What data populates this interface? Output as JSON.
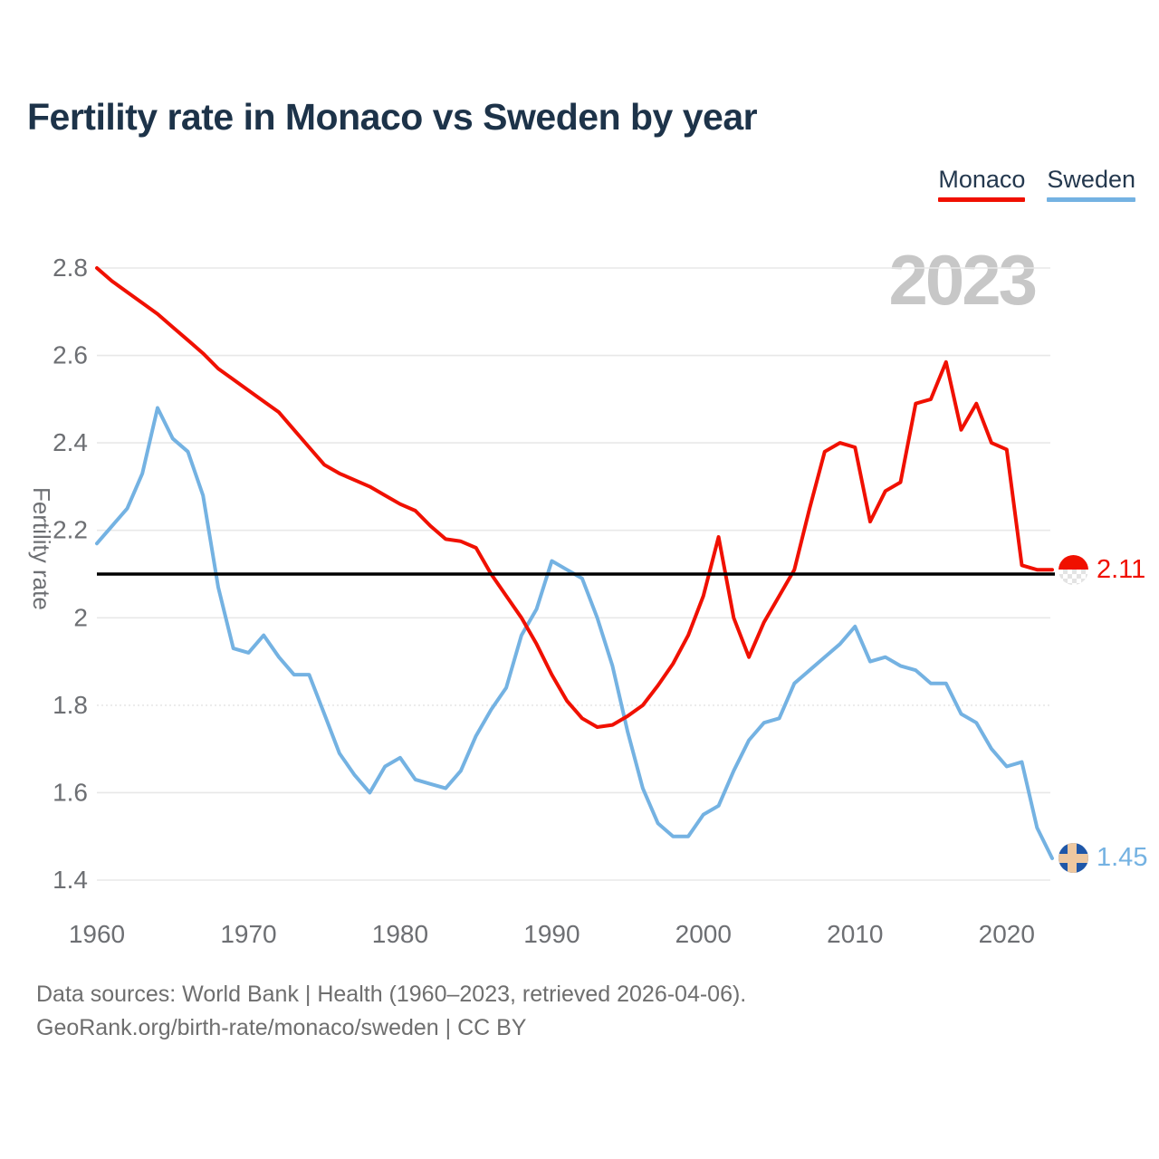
{
  "title": "Fertility rate in Monaco vs Sweden by year",
  "watermark": "2023",
  "legend": [
    {
      "label": "Monaco",
      "color": "#f01000"
    },
    {
      "label": "Sweden",
      "color": "#74b2e2"
    }
  ],
  "chart_data": {
    "type": "line",
    "title": "Fertility rate in Monaco vs Sweden by year",
    "xlabel": "",
    "ylabel": "Fertility rate",
    "grid": "horizontal",
    "legend_position": "top-right",
    "ylim": [
      1.4,
      2.8
    ],
    "reference_line": 2.1,
    "x": [
      1960,
      1961,
      1962,
      1963,
      1964,
      1965,
      1966,
      1967,
      1968,
      1969,
      1970,
      1971,
      1972,
      1973,
      1974,
      1975,
      1976,
      1977,
      1978,
      1979,
      1980,
      1981,
      1982,
      1983,
      1984,
      1985,
      1986,
      1987,
      1988,
      1989,
      1990,
      1991,
      1992,
      1993,
      1994,
      1995,
      1996,
      1997,
      1998,
      1999,
      2000,
      2001,
      2002,
      2003,
      2004,
      2005,
      2006,
      2007,
      2008,
      2009,
      2010,
      2011,
      2012,
      2013,
      2014,
      2015,
      2016,
      2017,
      2018,
      2019,
      2020,
      2021,
      2022,
      2023
    ],
    "series": [
      {
        "name": "Monaco",
        "color": "#f01000",
        "values": [
          2.8,
          2.77,
          2.745,
          2.72,
          2.695,
          2.665,
          2.635,
          2.605,
          2.57,
          2.545,
          2.52,
          2.495,
          2.47,
          2.43,
          2.39,
          2.35,
          2.33,
          2.315,
          2.3,
          2.28,
          2.26,
          2.245,
          2.21,
          2.18,
          2.175,
          2.16,
          2.1,
          2.05,
          2.0,
          1.94,
          1.87,
          1.81,
          1.77,
          1.75,
          1.755,
          1.775,
          1.8,
          1.845,
          1.895,
          1.96,
          2.05,
          2.185,
          2.0,
          1.91,
          1.99,
          2.05,
          2.11,
          2.25,
          2.38,
          2.4,
          2.39,
          2.22,
          2.29,
          2.31,
          2.49,
          2.5,
          2.585,
          2.43,
          2.49,
          2.4,
          2.385,
          2.12,
          2.11,
          2.11
        ]
      },
      {
        "name": "Sweden",
        "color": "#74b2e2",
        "values": [
          2.17,
          2.21,
          2.25,
          2.33,
          2.48,
          2.41,
          2.38,
          2.28,
          2.07,
          1.93,
          1.92,
          1.96,
          1.91,
          1.87,
          1.87,
          1.78,
          1.69,
          1.64,
          1.6,
          1.66,
          1.68,
          1.63,
          1.62,
          1.61,
          1.65,
          1.73,
          1.79,
          1.84,
          1.96,
          2.02,
          2.13,
          2.11,
          2.09,
          2.0,
          1.89,
          1.74,
          1.61,
          1.53,
          1.5,
          1.5,
          1.55,
          1.57,
          1.65,
          1.72,
          1.76,
          1.77,
          1.85,
          1.88,
          1.91,
          1.94,
          1.98,
          1.9,
          1.91,
          1.89,
          1.88,
          1.85,
          1.85,
          1.78,
          1.76,
          1.7,
          1.66,
          1.67,
          1.52,
          1.45
        ]
      }
    ],
    "y_ticks": [
      {
        "label": "2.8",
        "value": 2.8,
        "dashed": false
      },
      {
        "label": "2.6",
        "value": 2.6,
        "dashed": false
      },
      {
        "label": "2.4",
        "value": 2.4,
        "dashed": false
      },
      {
        "label": "2.2",
        "value": 2.2,
        "dashed": false
      },
      {
        "label": "2",
        "value": 2.0,
        "dashed": false
      },
      {
        "label": "1.8",
        "value": 1.8,
        "dashed": true
      },
      {
        "label": "1.6",
        "value": 1.6,
        "dashed": false
      },
      {
        "label": "1.4",
        "value": 1.4,
        "dashed": false
      }
    ],
    "x_ticks": [
      {
        "label": "1960",
        "value": 1960
      },
      {
        "label": "1970",
        "value": 1970
      },
      {
        "label": "1980",
        "value": 1980
      },
      {
        "label": "1990",
        "value": 1990
      },
      {
        "label": "2000",
        "value": 2000
      },
      {
        "label": "2010",
        "value": 2010
      },
      {
        "label": "2020",
        "value": 2020
      }
    ],
    "end_labels": [
      {
        "series": "Monaco",
        "text": "2.11",
        "value": 2.11,
        "color": "#f01000",
        "flag": "monaco"
      },
      {
        "series": "Sweden",
        "text": "1.45",
        "value": 1.45,
        "color": "#74b2e2",
        "flag": "sweden"
      }
    ]
  },
  "footer": {
    "line1": "Data sources: World Bank | Health (1960–2023, retrieved 2026-04-06).",
    "line2": "GeoRank.org/birth-rate/monaco/sweden | CC BY"
  }
}
